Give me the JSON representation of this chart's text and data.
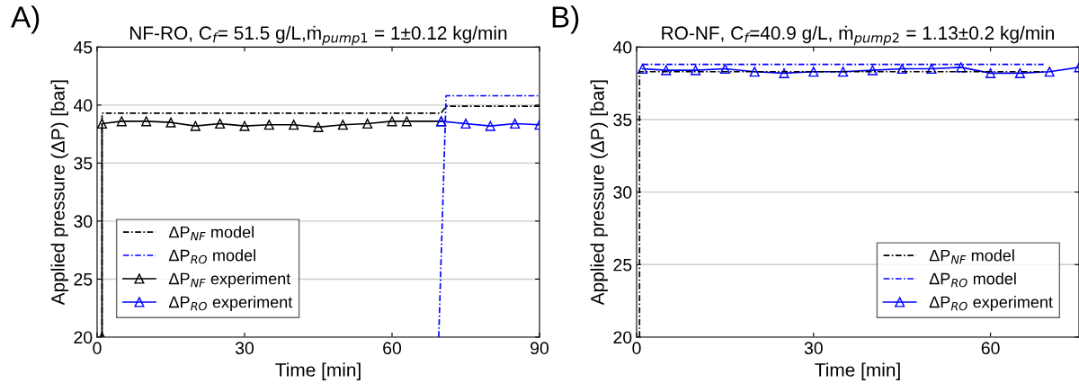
{
  "chart_data": [
    {
      "type": "line",
      "title": "NF-RO, C$_{f}$= 51.5 g/L,ṁ$_{pump1}$ = 1±0.12 kg/min",
      "xlabel": "Time [min]",
      "ylabel": "Applied pressure (ΔP) [bar]",
      "annotations": [
        "A)"
      ],
      "xlim": [
        0,
        90
      ],
      "xticks": [
        0,
        30,
        60,
        90
      ],
      "ylim": [
        20,
        45
      ],
      "yticks": [
        20,
        25,
        30,
        35,
        40,
        45
      ],
      "grid": "y",
      "legend": "bottom left",
      "series": [
        {
          "name": "ΔP$_{NF}$ model",
          "color": "#000000",
          "line_style": "dashdot",
          "marker": "none",
          "x": [
            1,
            1,
            70,
            71,
            90
          ],
          "values": [
            20,
            39.3,
            39.3,
            39.9,
            39.9
          ]
        },
        {
          "name": "ΔP$_{RO}$ model",
          "color": "#0000ff",
          "line_style": "dashdot",
          "marker": "none",
          "x": [
            69.5,
            71,
            90
          ],
          "values": [
            20,
            40.8,
            40.8
          ]
        },
        {
          "name": "ΔP$_{NF}$ experiment",
          "color": "#000000",
          "line_style": "solid",
          "marker": "triangle",
          "x": [
            1,
            1,
            5,
            10,
            15,
            20,
            25,
            30,
            35,
            40,
            45,
            50,
            55,
            60,
            63,
            70
          ],
          "values": [
            20,
            38.4,
            38.6,
            38.6,
            38.5,
            38.2,
            38.4,
            38.2,
            38.3,
            38.3,
            38.1,
            38.3,
            38.4,
            38.6,
            38.6,
            38.6
          ]
        },
        {
          "name": "ΔP$_{RO}$ experiment",
          "color": "#0000ff",
          "line_style": "solid",
          "marker": "triangle",
          "x": [
            70,
            75,
            80,
            85,
            90
          ],
          "values": [
            38.6,
            38.4,
            38.2,
            38.4,
            38.3
          ]
        }
      ]
    },
    {
      "type": "line",
      "title": "RO-NF, C$_{f}$=40.9 g/L, ṁ$_{pump2}$ = 1.13±0.2 kg/min",
      "xlabel": "Time [min]",
      "ylabel": "Applied pressure (ΔP) [bar]",
      "annotations": [
        "B)"
      ],
      "xlim": [
        0,
        75
      ],
      "xticks": [
        0,
        30,
        60
      ],
      "ylim": [
        20,
        40
      ],
      "yticks": [
        20,
        25,
        30,
        35,
        40
      ],
      "grid": "y",
      "legend": "bottom right",
      "series": [
        {
          "name": "ΔP$_{NF}$ model",
          "color": "#000000",
          "line_style": "dashdot",
          "marker": "none",
          "x": [
            0.5,
            0.5,
            69
          ],
          "values": [
            20,
            38.3,
            38.3
          ]
        },
        {
          "name": "ΔP$_{RO}$ model",
          "color": "#0000ff",
          "line_style": "dashdot",
          "marker": "none",
          "x": [
            1,
            69
          ],
          "values": [
            38.8,
            38.8
          ]
        },
        {
          "name": "ΔP$_{RO}$ experiment",
          "color": "#0000ff",
          "line_style": "solid",
          "marker": "triangle",
          "x": [
            1,
            5,
            10,
            15,
            20,
            25,
            30,
            35,
            40,
            45,
            50,
            55,
            60,
            65,
            70,
            75
          ],
          "values": [
            38.5,
            38.4,
            38.4,
            38.5,
            38.3,
            38.2,
            38.3,
            38.3,
            38.4,
            38.5,
            38.5,
            38.6,
            38.2,
            38.2,
            38.3,
            38.6
          ]
        }
      ]
    }
  ]
}
